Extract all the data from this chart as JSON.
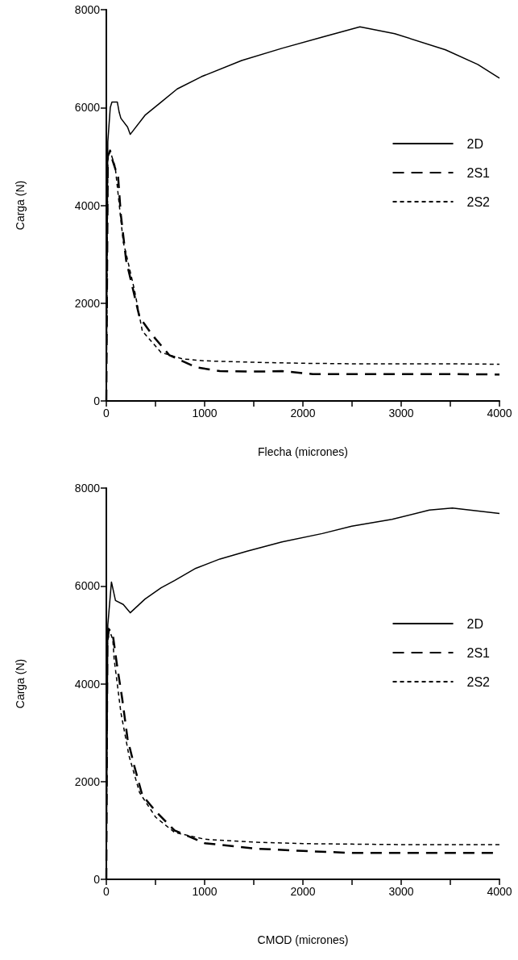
{
  "chart_data": [
    {
      "type": "line",
      "xlabel": "Flecha (micrones)",
      "ylabel": "Carga (N)",
      "xlim": [
        0,
        4000
      ],
      "ylim": [
        0,
        8000
      ],
      "xticks": [
        0,
        {
          "value": 500,
          "label": null
        },
        1000,
        {
          "value": 1500,
          "label": null
        },
        2000,
        {
          "value": 2500,
          "label": null
        },
        3000,
        {
          "value": 3500,
          "label": null
        },
        4000
      ],
      "yticks": [
        0,
        2000,
        4000,
        6000,
        8000
      ],
      "grid": false,
      "legend": "right",
      "marker": "none",
      "series": [
        {
          "name": "2D",
          "color": "#000000",
          "line_style": "solid",
          "x": [
            0,
            15,
            40,
            57,
            112,
            131,
            148,
            216,
            243,
            393,
            557,
            721,
            967,
            1377,
            1787,
            2197,
            2580,
            2934,
            3451,
            3779,
            4000
          ],
          "values": [
            0,
            5300,
            6000,
            6110,
            6110,
            5900,
            5780,
            5600,
            5450,
            5840,
            6110,
            6380,
            6630,
            6960,
            7210,
            7440,
            7650,
            7510,
            7180,
            6880,
            6600
          ]
        },
        {
          "name": "2S1",
          "color": "#000000",
          "line_style": "dashed",
          "x": [
            0,
            15,
            38,
            66,
            120,
            148,
            202,
            254,
            338,
            475,
            639,
            910,
            1156,
            1500,
            1787,
            2100,
            2500,
            3000,
            3500,
            4000
          ],
          "values": [
            0,
            5000,
            5120,
            4900,
            4570,
            3800,
            2870,
            2430,
            1710,
            1330,
            940,
            690,
            610,
            600,
            610,
            550,
            550,
            550,
            550,
            540
          ]
        },
        {
          "name": "2S2",
          "color": "#000000",
          "line_style": "dotted",
          "x": [
            0,
            15,
            40,
            90,
            131,
            172,
            205,
            287,
            366,
            557,
            776,
            1000,
            1500,
            2000,
            2500,
            3000,
            3500,
            4000
          ],
          "values": [
            0,
            5000,
            5100,
            4790,
            4020,
            3250,
            2980,
            2260,
            1430,
            990,
            860,
            820,
            790,
            770,
            760,
            760,
            760,
            750
          ]
        }
      ]
    },
    {
      "type": "line",
      "xlabel": "CMOD (micrones)",
      "ylabel": "Carga (N)",
      "xlim": [
        0,
        4000
      ],
      "ylim": [
        0,
        8000
      ],
      "xticks": [
        0,
        {
          "value": 500,
          "label": null
        },
        1000,
        {
          "value": 1500,
          "label": null
        },
        2000,
        {
          "value": 2500,
          "label": null
        },
        3000,
        {
          "value": 3500,
          "label": null
        },
        4000
      ],
      "yticks": [
        0,
        2000,
        4000,
        6000,
        8000
      ],
      "grid": false,
      "legend": "right",
      "marker": "none",
      "series": [
        {
          "name": "2D",
          "color": "#000000",
          "line_style": "solid",
          "x": [
            0,
            15,
            52,
            93,
            172,
            243,
            393,
            557,
            694,
            910,
            1156,
            1432,
            1787,
            2197,
            2497,
            2907,
            3287,
            3521,
            4000
          ],
          "values": [
            0,
            5200,
            6080,
            5700,
            5620,
            5450,
            5730,
            5960,
            6110,
            6360,
            6550,
            6710,
            6900,
            7070,
            7220,
            7360,
            7550,
            7590,
            7480
          ]
        },
        {
          "name": "2S1",
          "color": "#000000",
          "line_style": "dashed",
          "x": [
            0,
            10,
            25,
            66,
            107,
            161,
            216,
            284,
            366,
            502,
            694,
            1000,
            1500,
            2000,
            2500,
            3000,
            3500,
            4000
          ],
          "values": [
            0,
            4800,
            5120,
            5000,
            4400,
            3700,
            2870,
            2320,
            1720,
            1390,
            1000,
            740,
            630,
            580,
            540,
            540,
            540,
            540
          ]
        },
        {
          "name": "2S2",
          "color": "#000000",
          "line_style": "dotted",
          "x": [
            0,
            10,
            30,
            66,
            79,
            148,
            230,
            339,
            502,
            694,
            1000,
            1500,
            2000,
            2500,
            3000,
            3500,
            4000
          ],
          "values": [
            0,
            4800,
            5100,
            4900,
            4510,
            3410,
            2530,
            1770,
            1270,
            960,
            820,
            760,
            730,
            720,
            710,
            710,
            710
          ]
        }
      ]
    }
  ]
}
